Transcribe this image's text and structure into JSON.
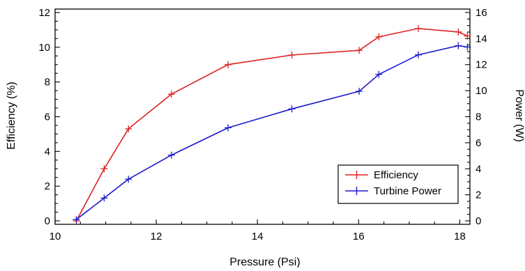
{
  "chart_data": {
    "type": "line",
    "title": "",
    "xlabel": "Pressure (Psi)",
    "ylabel": "Efficiency (%)",
    "y2label": "Power (W)",
    "xlim": [
      10,
      18.2
    ],
    "ylim": [
      -0.2,
      12.2
    ],
    "y2lim": [
      -0.267,
      16.267
    ],
    "x_ticks": [
      10,
      12,
      14,
      16,
      18
    ],
    "y_ticks": [
      0,
      2,
      4,
      6,
      8,
      10,
      12
    ],
    "y2_ticks": [
      0,
      2,
      4,
      6,
      8,
      10,
      12,
      14,
      16
    ],
    "grid": false,
    "legend_position": "bottom-right",
    "series": [
      {
        "name": "Efficiency",
        "axis": "left",
        "color": "#dd2222",
        "marker": "plus",
        "x": [
          10.42,
          10.97,
          11.45,
          12.3,
          13.42,
          14.68,
          16.01,
          16.4,
          17.18,
          17.97,
          18.15
        ],
        "y": [
          0.0,
          3.0,
          5.3,
          7.3,
          9.0,
          9.55,
          9.82,
          10.6,
          11.08,
          10.88,
          10.65
        ]
      },
      {
        "name": "Turbine Power",
        "axis": "right",
        "color": "#1a1acc",
        "marker": "plus",
        "x": [
          10.42,
          10.97,
          11.45,
          12.3,
          13.42,
          14.68,
          16.01,
          16.4,
          17.18,
          17.97,
          18.15
        ],
        "y": [
          0.1,
          1.75,
          3.2,
          5.05,
          7.15,
          8.6,
          9.95,
          11.25,
          12.75,
          13.45,
          13.35
        ]
      }
    ]
  }
}
